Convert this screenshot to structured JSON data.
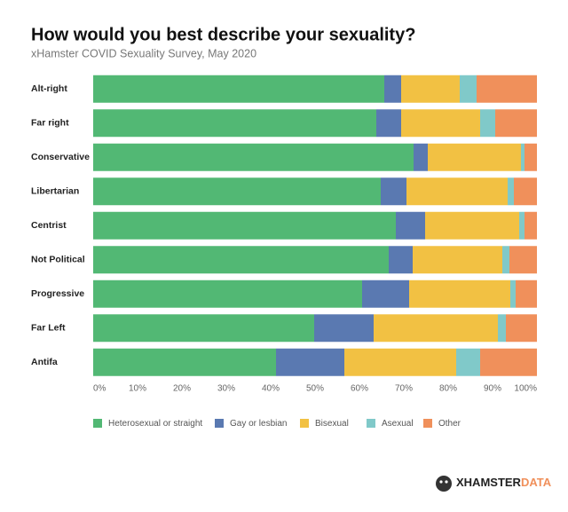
{
  "chart_data": {
    "type": "stacked-barh",
    "title": "How would you best describe your sexuality?",
    "subtitle": "xHamster COVID Sexuality Survey, May 2020",
    "categories": [
      "Alt-right",
      "Far right",
      "Conservative",
      "Libertarian",
      "Centrist",
      "Not Political",
      "Progressive",
      "Far Left",
      "Antifa"
    ],
    "series": [
      {
        "name": "Heterosexual or straight",
        "color": "#52b874",
        "values": [
          65.6,
          63.8,
          72.2,
          64.8,
          68.2,
          66.6,
          60.6,
          49.8,
          41.2
        ]
      },
      {
        "name": "Gay or lesbian",
        "color": "#5a79b1",
        "values": [
          3.8,
          5.6,
          3.2,
          5.8,
          6.6,
          5.4,
          10.6,
          13.4,
          15.4
        ]
      },
      {
        "name": "Bisexual",
        "color": "#f2c143",
        "values": [
          13.2,
          17.8,
          21.0,
          22.8,
          21.2,
          20.2,
          22.8,
          28.0,
          25.2
        ]
      },
      {
        "name": "Asexual",
        "color": "#80c9c9",
        "values": [
          3.8,
          3.4,
          0.8,
          1.4,
          1.2,
          1.6,
          1.2,
          1.8,
          5.4
        ]
      },
      {
        "name": "Other",
        "color": "#f0905b",
        "values": [
          13.6,
          9.4,
          2.8,
          5.2,
          2.8,
          6.2,
          4.8,
          7.0,
          12.8
        ]
      }
    ],
    "xlim": [
      0,
      100
    ],
    "xticks": [
      {
        "value": 0,
        "label": "0%"
      },
      {
        "value": 10,
        "label": "10%"
      },
      {
        "value": 20,
        "label": "20%"
      },
      {
        "value": 30,
        "label": "30%"
      },
      {
        "value": 40,
        "label": "40%"
      },
      {
        "value": 50,
        "label": "50%"
      },
      {
        "value": 60,
        "label": "60%"
      },
      {
        "value": 70,
        "label": "70%"
      },
      {
        "value": 80,
        "label": "80%"
      },
      {
        "value": 90,
        "label": "90%"
      },
      {
        "value": 100,
        "label": "100%"
      }
    ],
    "grid": false,
    "legend": "bottom"
  },
  "branding": [
    "XHAMSTER",
    "DATA"
  ]
}
